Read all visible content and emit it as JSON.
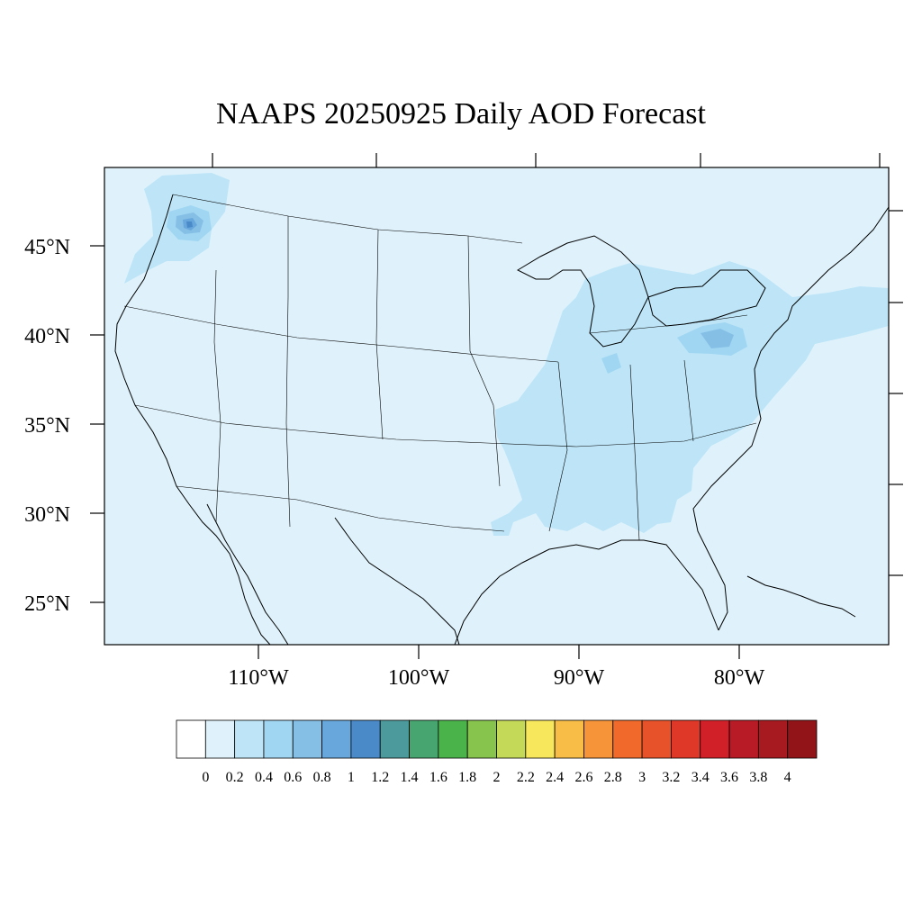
{
  "title": "NAAPS 20250925 Daily AOD Forecast",
  "map": {
    "background_color": "#dff2fb",
    "lon_range": [
      -119,
      -70
    ],
    "lat_range": [
      22.5,
      49.5
    ],
    "lat_labels": [
      {
        "lat": 45,
        "text": "45°N"
      },
      {
        "lat": 40,
        "text": "40°N"
      },
      {
        "lat": 35,
        "text": "35°N"
      },
      {
        "lat": 30,
        "text": "30°N"
      },
      {
        "lat": 25,
        "text": "25°N"
      }
    ],
    "lon_labels": [
      {
        "lon": -110,
        "text": "110°W"
      },
      {
        "lon": -100,
        "text": "100°W"
      },
      {
        "lon": -90,
        "text": "90°W"
      },
      {
        "lon": -80,
        "text": "80°W"
      }
    ]
  },
  "colorbar": {
    "colors": [
      "#ffffff",
      "#dff2fb",
      "#bde5f7",
      "#a0d6f2",
      "#85bfe5",
      "#68a7dc",
      "#4a8ac8",
      "#4c9a9b",
      "#47a670",
      "#4ab44a",
      "#86c44d",
      "#c4d957",
      "#f7e75c",
      "#f8bd47",
      "#f6943a",
      "#f16a2c",
      "#e8522a",
      "#df3728",
      "#d12028",
      "#b81b25",
      "#a61a20",
      "#921418"
    ],
    "labels": [
      "0",
      "0.2",
      "0.4",
      "0.6",
      "0.8",
      "1",
      "1.2",
      "1.4",
      "1.6",
      "1.8",
      "2",
      "2.2",
      "2.4",
      "2.6",
      "2.8",
      "3",
      "3.2",
      "3.4",
      "3.6",
      "3.8",
      "4"
    ]
  }
}
